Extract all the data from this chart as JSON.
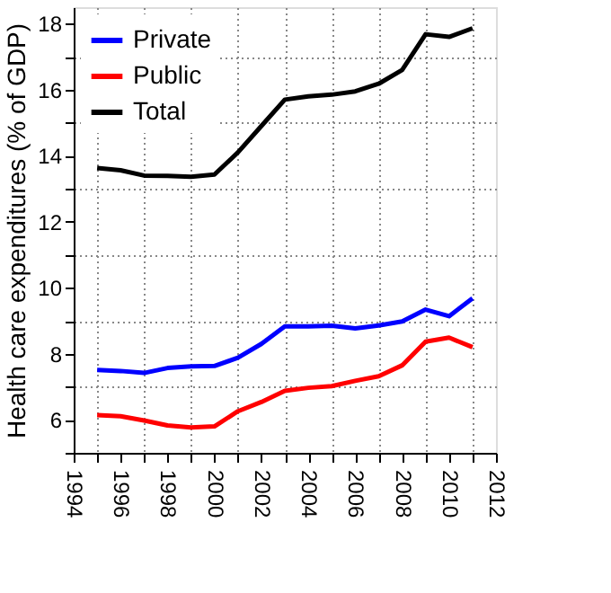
{
  "chart_data": {
    "type": "line",
    "ylabel": "Health care expenditures (% of GDP)",
    "x": [
      1995,
      1996,
      1997,
      1998,
      1999,
      2000,
      2001,
      2002,
      2003,
      2004,
      2005,
      2006,
      2007,
      2008,
      2009,
      2010,
      2011
    ],
    "series": [
      {
        "name": "Private",
        "color": "#0000ff",
        "values": [
          7.51,
          7.48,
          7.42,
          7.57,
          7.62,
          7.63,
          7.88,
          8.3,
          8.83,
          8.83,
          8.85,
          8.77,
          8.86,
          8.98,
          9.34,
          9.14,
          9.68
        ]
      },
      {
        "name": "Public",
        "color": "#ff0000",
        "values": [
          6.14,
          6.11,
          5.98,
          5.83,
          5.77,
          5.8,
          6.26,
          6.54,
          6.88,
          6.97,
          7.02,
          7.18,
          7.32,
          7.65,
          8.37,
          8.49,
          8.2
        ]
      },
      {
        "name": "Total",
        "color": "#000000",
        "values": [
          13.63,
          13.56,
          13.4,
          13.39,
          13.36,
          13.43,
          14.1,
          14.9,
          15.7,
          15.8,
          15.85,
          15.95,
          16.18,
          16.6,
          17.68,
          17.6,
          17.86
        ]
      }
    ],
    "xlim": [
      1994,
      2012
    ],
    "xticks": [
      1994,
      {
        "value": 1995,
        "label": null
      },
      1996,
      {
        "value": 1997,
        "label": null
      },
      1998,
      {
        "value": 1999,
        "label": null
      },
      2000,
      {
        "value": 2001,
        "label": null
      },
      2002,
      {
        "value": 2003,
        "label": null
      },
      2004,
      {
        "value": 2005,
        "label": null
      },
      2006,
      {
        "value": 2007,
        "label": null
      },
      2008,
      {
        "value": 2009,
        "label": null
      },
      2010,
      {
        "value": 2011,
        "label": null
      },
      2012
    ],
    "ylim": [
      5,
      18.5
    ],
    "yticks": [
      {
        "value": 5,
        "label": null
      },
      6,
      {
        "value": 7,
        "label": null
      },
      8,
      {
        "value": 9,
        "label": null
      },
      10,
      {
        "value": 11,
        "label": null
      },
      12,
      {
        "value": 13,
        "label": null
      },
      14,
      {
        "value": 15,
        "label": null
      },
      16,
      {
        "value": 17,
        "label": null
      },
      18
    ],
    "grid": true,
    "legend": "top left",
    "line_style": "solid",
    "marker": "none"
  }
}
